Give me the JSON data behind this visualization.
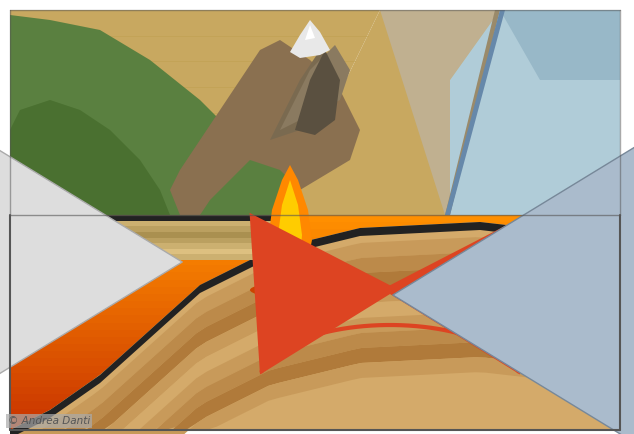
{
  "background_color": "#ffffff",
  "credit_text": "© Andrea Danti",
  "credit_color": "#555555",
  "credit_bg": "#aaaaaa",
  "credit_fontsize": 7.5,
  "fig_w": 6.34,
  "fig_h": 4.34,
  "dpi": 100,
  "mantle": {
    "color_bot": "#c83000",
    "color_mid": "#e06020",
    "color_top": "#f09060"
  },
  "slab_layers": [
    "#d4aa6a",
    "#c89a5a",
    "#bc8a4a",
    "#b07a3a",
    "#c89a5a",
    "#d4aa6a",
    "#c89a5a",
    "#bc8a4a",
    "#b07a3a",
    "#c89a5a"
  ],
  "cont_layers": [
    "#ddc080",
    "#ccb070",
    "#bba060",
    "#aa9050",
    "#bba060",
    "#ccb070",
    "#ddc080",
    "#ccb070"
  ],
  "dark_crust": "#222222",
  "ocean_water": "#b0ccd8",
  "ocean_water2": "#98b8c8",
  "ocean_sediment": "#c0b898",
  "sand_top": "#d8c090",
  "mantle_arrow": "#dd4422",
  "left_arrow_fill": "#dddddd",
  "left_arrow_edge": "#aaaaaa",
  "right_arrow_fill": "#aabbcc",
  "right_arrow_edge": "#778899",
  "lava_outer": "#ff8800",
  "lava_inner": "#ffcc00",
  "lava_drip": "#cc3300",
  "lava_pool": "#cc4400",
  "grass_color": "#5a8040",
  "rock_color": "#7a6a50",
  "snow_color": "#f0f0f0"
}
